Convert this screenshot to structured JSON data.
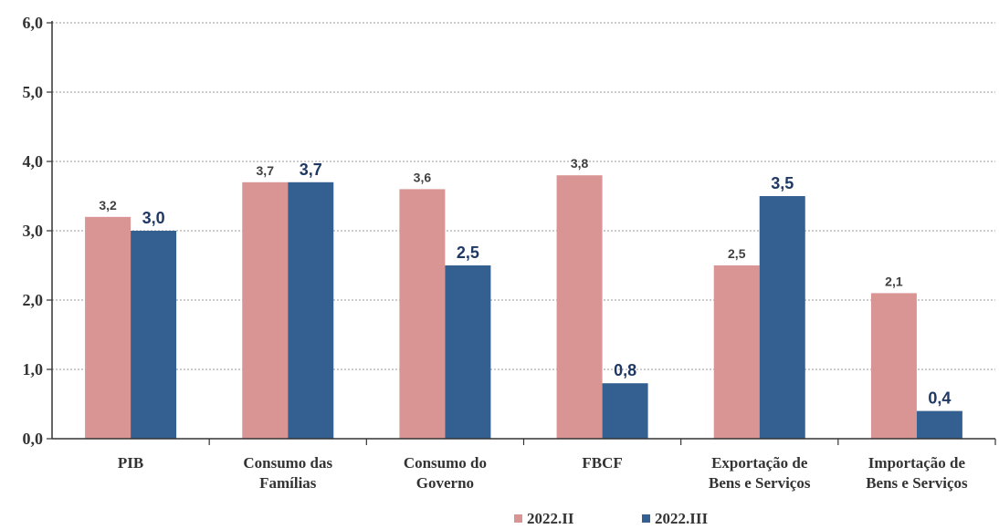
{
  "chart_data": {
    "type": "bar",
    "categories": [
      [
        "PIB"
      ],
      [
        "Consumo das",
        "Famílias"
      ],
      [
        "Consumo do",
        "Governo"
      ],
      [
        "FBCF"
      ],
      [
        "Exportação de",
        "Bens e Serviços"
      ],
      [
        "Importação de",
        "Bens e Serviços"
      ]
    ],
    "series": [
      {
        "name": "2022.II",
        "color": "#d99594",
        "values": [
          3.2,
          3.7,
          3.6,
          3.8,
          2.5,
          2.1
        ],
        "labels": [
          "3,2",
          "3,7",
          "3,6",
          "3,8",
          "2,5",
          "2,1"
        ]
      },
      {
        "name": "2022.III",
        "color": "#336091",
        "values": [
          3.0,
          3.7,
          2.5,
          0.8,
          3.5,
          0.4
        ],
        "labels": [
          "3,0",
          "3,7",
          "2,5",
          "0,8",
          "3,5",
          "0,4"
        ]
      }
    ],
    "ylim": [
      0,
      6
    ],
    "yticks": [
      0,
      1,
      2,
      3,
      4,
      5,
      6
    ],
    "ytick_labels": [
      "0,0",
      "1,0",
      "2,0",
      "3,0",
      "4,0",
      "5,0",
      "6,0"
    ],
    "grid": true,
    "legend_position": "bottom-center"
  }
}
